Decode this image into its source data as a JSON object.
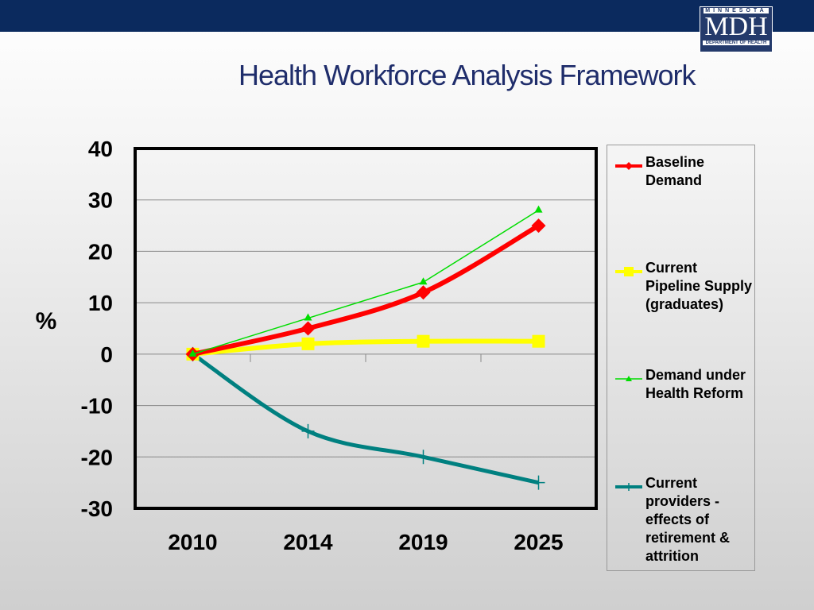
{
  "header": {
    "title": "Health Workforce Analysis Framework",
    "logo": {
      "top": "MINNESOTA",
      "main": "MDH",
      "bottom": "DEPARTMENT OF HEALTH"
    }
  },
  "chart_data": {
    "type": "line",
    "title": "",
    "xlabel": "",
    "ylabel": "%",
    "categories": [
      "2010",
      "2014",
      "2019",
      "2025"
    ],
    "ylim": [
      -30,
      40
    ],
    "yticks": [
      40,
      30,
      20,
      10,
      0,
      -10,
      -20,
      -30
    ],
    "grid": true,
    "legend_placement": "right",
    "series": [
      {
        "name": "Baseline Demand",
        "values": [
          0,
          5,
          12,
          25
        ],
        "color": "#ff0000",
        "marker": "diamond",
        "width": 6
      },
      {
        "name": "Current Pipeline Supply (graduates)",
        "values": [
          0,
          2,
          2.5,
          2.5
        ],
        "color": "#ffff00",
        "marker": "square",
        "width": 6
      },
      {
        "name": "Demand under Health Reform",
        "values": [
          0,
          7,
          14,
          28
        ],
        "color": "#00dd00",
        "marker": "triangle",
        "width": 1.5
      },
      {
        "name": "Current providers - effects of retirement & attrition",
        "values": [
          0,
          -15,
          -20,
          -25
        ],
        "color": "#008080",
        "marker": "plus",
        "width": 5
      }
    ]
  }
}
